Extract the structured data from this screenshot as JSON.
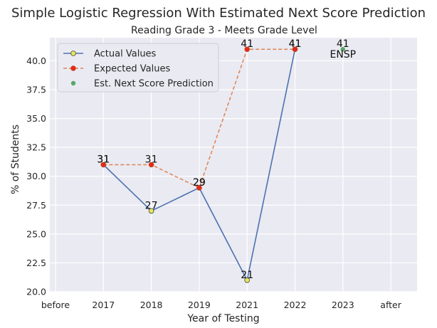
{
  "chart_data": {
    "type": "line",
    "title": "Simple Logistic Regression With Estimated Next Score Prediction",
    "subtitle": "Reading Grade 3 - Meets Grade Level",
    "xlabel": "Year of Testing",
    "ylabel": "% of Students",
    "categories": [
      "before",
      "2017",
      "2018",
      "2019",
      "2021",
      "2022",
      "2023",
      "after"
    ],
    "ylim": [
      20.0,
      42.0
    ],
    "yticks": [
      "20.0",
      "22.5",
      "25.0",
      "27.5",
      "30.0",
      "32.5",
      "35.0",
      "37.5",
      "40.0"
    ],
    "grid": true,
    "legend_position": "top-left",
    "series": [
      {
        "name": "Actual Values",
        "style": "solid-line-yellow-markers",
        "color": "#4c72b0",
        "marker_color": "#e8e85a",
        "x": [
          "2017",
          "2018",
          "2019",
          "2021",
          "2022"
        ],
        "values": [
          31,
          27,
          29,
          21,
          41
        ],
        "labels": [
          "31",
          "27",
          "29",
          "21",
          "41"
        ]
      },
      {
        "name": "Expected Values",
        "style": "dashed-line-red-markers",
        "color": "#dd8452",
        "marker_color": "#e8261b",
        "x": [
          "2017",
          "2018",
          "2019",
          "2021",
          "2022"
        ],
        "values": [
          31,
          31,
          29,
          41,
          41
        ],
        "labels": [
          "31",
          "31",
          "29",
          "41",
          "41"
        ]
      },
      {
        "name": "Est. Next Score Prediction",
        "style": "point-green",
        "color": "#55a868",
        "x": [
          "2023"
        ],
        "values": [
          41
        ],
        "labels": [
          "41"
        ],
        "annotation": "ENSP"
      }
    ],
    "colors": {
      "background": "#eaeaf2",
      "grid": "#ffffff"
    }
  }
}
